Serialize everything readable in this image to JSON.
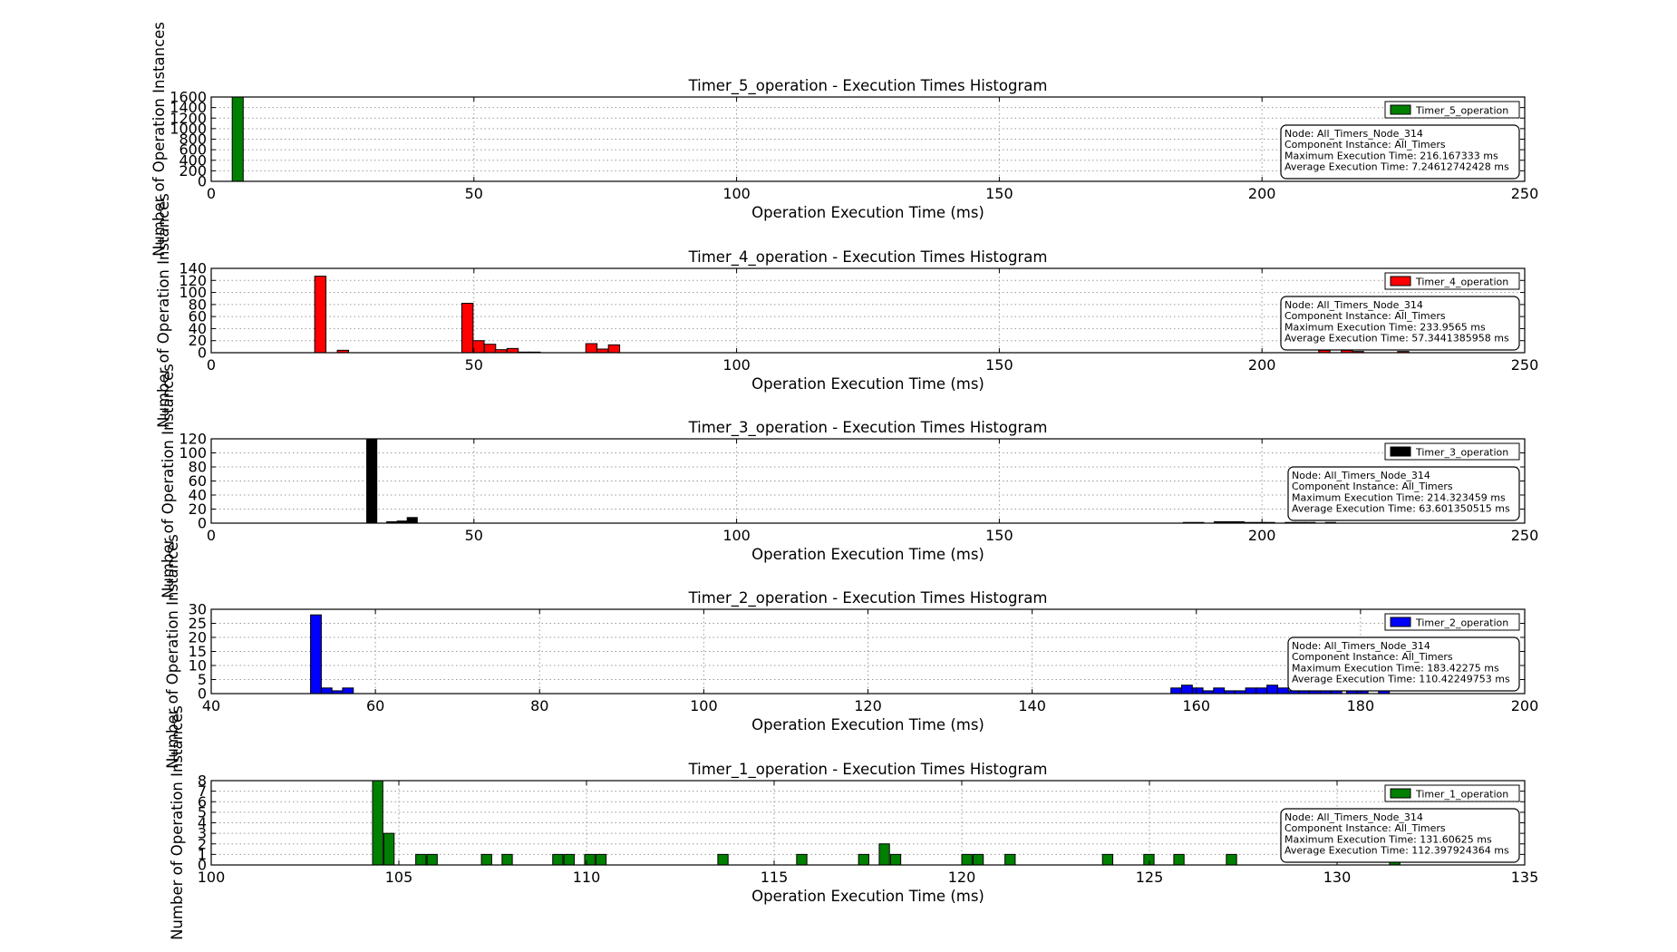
{
  "figure": {
    "background": "#ffffff",
    "grid_color": "#9a9a9a"
  },
  "chart_data": [
    {
      "type": "bar",
      "title": "Timer_5_operation - Execution Times Histogram",
      "xlabel": "Operation Execution Time (ms)",
      "ylabel": "Number of Operation Instances",
      "xlim": [
        0,
        250
      ],
      "ylim": [
        0,
        1600
      ],
      "xticks": [
        0,
        50,
        100,
        150,
        200,
        250
      ],
      "yticks": [
        0,
        200,
        400,
        600,
        800,
        1000,
        1200,
        1400,
        1600
      ],
      "grid": true,
      "legend_position": "top-right",
      "color": "#008000",
      "series": [
        {
          "name": "Timer_5_operation",
          "color": "#008000"
        }
      ],
      "bin_width": 2.09,
      "bins": [
        [
          4.0,
          1600
        ]
      ],
      "info": [
        "Node: All_Timers_Node_314",
        "Component Instance: All_Timers",
        "Maximum Execution Time: 216.167333 ms",
        "Average Execution Time: 7.24612742428 ms"
      ]
    },
    {
      "type": "bar",
      "title": "Timer_4_operation - Execution Times Histogram",
      "xlabel": "Operation Execution Time (ms)",
      "ylabel": "Number of Operation Instances",
      "xlim": [
        0,
        250
      ],
      "ylim": [
        0,
        140
      ],
      "xticks": [
        0,
        50,
        100,
        150,
        200,
        250
      ],
      "yticks": [
        0,
        20,
        40,
        60,
        80,
        100,
        120,
        140
      ],
      "grid": true,
      "legend_position": "top-right",
      "color": "#ff0000",
      "series": [
        {
          "name": "Timer_4_operation",
          "color": "#ff0000"
        }
      ],
      "bin_width": 2.14,
      "bins": [
        [
          19.7,
          127
        ],
        [
          24.0,
          4
        ],
        [
          47.7,
          82
        ],
        [
          49.8,
          20
        ],
        [
          52.0,
          14
        ],
        [
          54.1,
          5
        ],
        [
          56.3,
          7
        ],
        [
          58.4,
          1
        ],
        [
          60.5,
          1
        ],
        [
          71.3,
          15
        ],
        [
          73.4,
          6
        ],
        [
          75.6,
          13
        ],
        [
          210.8,
          4
        ],
        [
          215.1,
          4
        ],
        [
          217.2,
          2
        ],
        [
          225.8,
          2
        ]
      ],
      "info": [
        "Node: All_Timers_Node_314",
        "Component Instance: All_Timers",
        "Maximum Execution Time: 233.9565 ms",
        "Average Execution Time: 57.3441385958 ms"
      ]
    },
    {
      "type": "bar",
      "title": "Timer_3_operation - Execution Times Histogram",
      "xlabel": "Operation Execution Time (ms)",
      "ylabel": "Number of Operation Instances",
      "xlim": [
        0,
        250
      ],
      "ylim": [
        0,
        120
      ],
      "xticks": [
        0,
        50,
        100,
        150,
        200,
        250
      ],
      "yticks": [
        0,
        20,
        40,
        60,
        80,
        100,
        120
      ],
      "grid": true,
      "legend_position": "top-right",
      "color": "#000000",
      "series": [
        {
          "name": "Timer_3_operation",
          "color": "#000000"
        }
      ],
      "bin_width": 1.92,
      "bins": [
        [
          29.6,
          125
        ],
        [
          33.4,
          2
        ],
        [
          35.4,
          3
        ],
        [
          37.3,
          8
        ],
        [
          185.0,
          1
        ],
        [
          187.0,
          1
        ],
        [
          190.9,
          2
        ],
        [
          192.8,
          2
        ],
        [
          194.7,
          2
        ],
        [
          196.6,
          1
        ],
        [
          198.6,
          1
        ],
        [
          200.5,
          1
        ],
        [
          204.4,
          1
        ],
        [
          206.3,
          1
        ],
        [
          208.2,
          1
        ],
        [
          212.1,
          1
        ]
      ],
      "info": [
        "Node: All_Timers_Node_314",
        "Component Instance: All_Timers",
        "Maximum Execution Time: 214.323459 ms",
        "Average Execution Time: 63.601350515 ms"
      ]
    },
    {
      "type": "bar",
      "title": "Timer_2_operation - Execution Times Histogram",
      "xlabel": "Operation Execution Time (ms)",
      "ylabel": "Number of Operation Instances",
      "xlim": [
        40,
        200
      ],
      "ylim": [
        0,
        30
      ],
      "xticks": [
        40,
        60,
        80,
        100,
        120,
        140,
        160,
        180,
        200
      ],
      "yticks": [
        0,
        5,
        10,
        15,
        20,
        25,
        30
      ],
      "grid": true,
      "legend_position": "top-right",
      "color": "#0000ff",
      "series": [
        {
          "name": "Timer_2_operation",
          "color": "#0000ff"
        }
      ],
      "bin_width": 1.31,
      "bins": [
        [
          52.1,
          28
        ],
        [
          53.4,
          2
        ],
        [
          54.7,
          1
        ],
        [
          56.0,
          2
        ],
        [
          156.9,
          2
        ],
        [
          158.2,
          3
        ],
        [
          159.5,
          2
        ],
        [
          160.8,
          1
        ],
        [
          162.1,
          2
        ],
        [
          163.4,
          1
        ],
        [
          164.7,
          1
        ],
        [
          166.0,
          2
        ],
        [
          167.3,
          2
        ],
        [
          168.6,
          3
        ],
        [
          169.9,
          2
        ],
        [
          171.2,
          1
        ],
        [
          172.5,
          1
        ],
        [
          173.8,
          1
        ],
        [
          175.1,
          1
        ],
        [
          176.4,
          1
        ],
        [
          178.3,
          1
        ],
        [
          179.6,
          1
        ],
        [
          182.2,
          1
        ]
      ],
      "info": [
        "Node: All_Timers_Node_314",
        "Component Instance: All_Timers",
        "Maximum Execution Time: 183.42275 ms",
        "Average Execution Time: 110.42249753 ms"
      ]
    },
    {
      "type": "bar",
      "title": "Timer_1_operation - Execution Times Histogram",
      "xlabel": "Operation Execution Time (ms)",
      "ylabel": "Number of Operation Instances",
      "xlim": [
        100,
        135
      ],
      "ylim": [
        0,
        8
      ],
      "xticks": [
        100,
        105,
        110,
        115,
        120,
        125,
        130,
        135
      ],
      "yticks": [
        0,
        1,
        2,
        3,
        4,
        5,
        6,
        7,
        8
      ],
      "grid": true,
      "legend_position": "top-right",
      "color": "#008000",
      "series": [
        {
          "name": "Timer_1_operation",
          "color": "#008000"
        }
      ],
      "bin_width": 0.273,
      "bins": [
        [
          104.3,
          8
        ],
        [
          104.6,
          3
        ],
        [
          105.45,
          1
        ],
        [
          105.75,
          1
        ],
        [
          107.2,
          1
        ],
        [
          107.75,
          1
        ],
        [
          109.1,
          1
        ],
        [
          109.4,
          1
        ],
        [
          109.95,
          1
        ],
        [
          110.25,
          1
        ],
        [
          113.5,
          1
        ],
        [
          115.6,
          1
        ],
        [
          117.25,
          1
        ],
        [
          117.8,
          2
        ],
        [
          118.1,
          1
        ],
        [
          120.0,
          1
        ],
        [
          120.3,
          1
        ],
        [
          121.15,
          1
        ],
        [
          123.75,
          1
        ],
        [
          124.85,
          1
        ],
        [
          125.65,
          1
        ],
        [
          127.05,
          1
        ],
        [
          131.4,
          1
        ]
      ],
      "info": [
        "Node: All_Timers_Node_314",
        "Component Instance: All_Timers",
        "Maximum Execution Time: 131.60625 ms",
        "Average Execution Time: 112.397924364 ms"
      ]
    }
  ]
}
